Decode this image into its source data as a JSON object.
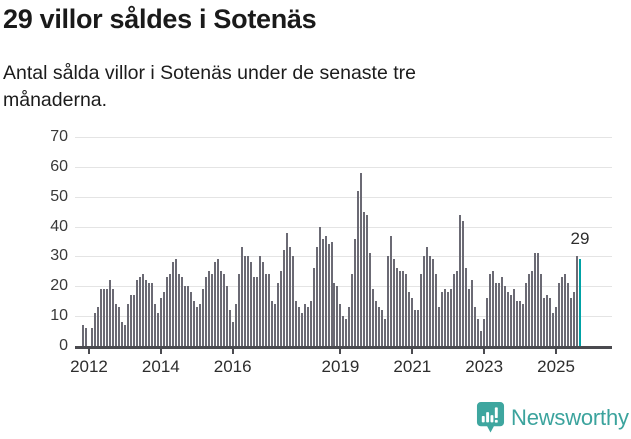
{
  "header": {
    "title": "29 villor såldes i Sotenäs",
    "subtitle_line1": "Antal sålda villor i Sotenäs under de senaste tre",
    "subtitle_line2": "månaderna."
  },
  "chart_data": {
    "type": "bar",
    "title": "29 villor såldes i Sotenäs",
    "description": "Antal sålda villor i Sotenäs under de senaste tre månaderna.",
    "ylim": [
      0,
      70
    ],
    "yticks": [
      0,
      10,
      20,
      30,
      40,
      50,
      60,
      70
    ],
    "grid": true,
    "legend": "none",
    "bar_color": "#6b6a74",
    "highlight_color": "#00a2a6",
    "axis_color": "#4a4a4f",
    "x_ticks": [
      {
        "label": "2012",
        "offset": 2
      },
      {
        "label": "2014",
        "offset": 26
      },
      {
        "label": "2016",
        "offset": 50
      },
      {
        "label": "2019",
        "offset": 86
      },
      {
        "label": "2021",
        "offset": 110
      },
      {
        "label": "2023",
        "offset": 134
      },
      {
        "label": "2025",
        "offset": 158
      }
    ],
    "values": [
      7,
      6,
      0,
      6,
      11,
      13,
      19,
      19,
      19,
      22,
      19,
      14,
      13,
      8,
      7,
      14,
      17,
      17,
      22,
      23,
      24,
      22,
      21,
      21,
      14,
      11,
      16,
      18,
      23,
      24,
      28,
      29,
      24,
      23,
      20,
      20,
      18,
      15,
      13,
      14,
      19,
      23,
      25,
      24,
      28,
      29,
      25,
      24,
      20,
      12,
      8,
      14,
      24,
      33,
      30,
      30,
      28,
      23,
      23,
      30,
      28,
      24,
      24,
      15,
      14,
      21,
      25,
      32,
      38,
      33,
      30,
      15,
      13,
      11,
      14,
      13,
      15,
      26,
      33,
      40,
      36,
      37,
      34,
      35,
      21,
      20,
      14,
      10,
      9,
      13,
      24,
      36,
      52,
      58,
      45,
      44,
      31,
      19,
      15,
      13,
      12,
      9,
      30,
      37,
      29,
      26,
      25,
      25,
      24,
      18,
      16,
      12,
      12,
      24,
      30,
      33,
      30,
      29,
      24,
      13,
      18,
      19,
      18,
      19,
      24,
      25,
      44,
      42,
      26,
      19,
      22,
      13,
      9,
      5,
      9,
      16,
      24,
      25,
      21,
      21,
      23,
      20,
      18,
      17,
      19,
      15,
      15,
      14,
      21,
      24,
      25,
      31,
      31,
      24,
      16,
      17,
      16,
      11,
      13,
      21,
      23,
      24,
      21,
      16,
      18,
      30,
      29
    ],
    "highlight_last": true,
    "highlight_value": 29,
    "highlight_label": "29"
  },
  "footer": {
    "brand": "Newsworthy",
    "brand_color": "#3ba39d",
    "icon": "newsworthy-logo-icon"
  }
}
